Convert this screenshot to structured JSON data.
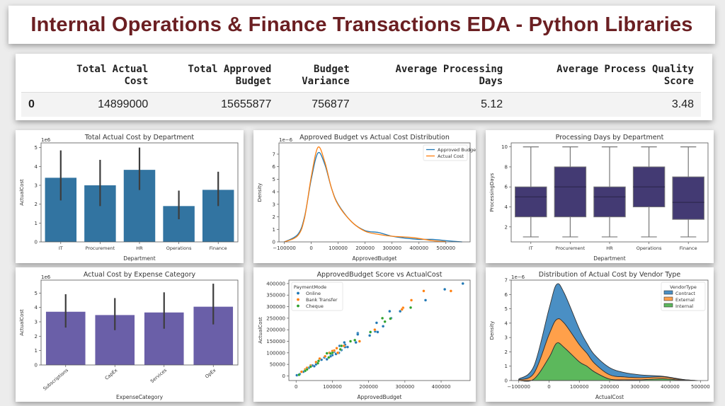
{
  "header": {
    "title": "Internal Operations & Finance Transactions EDA - Python Libraries"
  },
  "table": {
    "columns": [
      "",
      "Total Actual\nCost",
      "Total Approved\nBudget",
      "Budget\nVariance",
      "Average Processing\nDays",
      "Average Process Quality\nScore"
    ],
    "rows": [
      {
        "index": "0",
        "values": [
          "14899000",
          "15655877",
          "756877",
          "5.12",
          "3.48"
        ]
      }
    ]
  },
  "chart_data": [
    {
      "type": "bar",
      "title": "Total Actual Cost by Department",
      "xlabel": "Department",
      "ylabel": "ActualCost",
      "offset_label": "1e6",
      "categories": [
        "IT",
        "Procurement",
        "HR",
        "Operations",
        "Finance"
      ],
      "values": [
        3.4,
        3.0,
        3.82,
        1.9,
        2.76
      ],
      "ci": [
        [
          2.2,
          4.85
        ],
        [
          1.9,
          4.35
        ],
        [
          2.75,
          5.0
        ],
        [
          1.2,
          2.72
        ],
        [
          1.9,
          3.72
        ]
      ],
      "ylim": [
        0,
        5.25
      ],
      "yticks": [
        0,
        1,
        2,
        3,
        4,
        5
      ],
      "color": "#3274a1",
      "grid": false
    },
    {
      "type": "line",
      "title": "Approved Budget vs Actual Cost Distribution",
      "xlabel": "ApprovedBudget",
      "ylabel": "Density",
      "offset_label": "1e−6",
      "xlim": [
        -120000,
        590000
      ],
      "ylim": [
        0,
        7.9
      ],
      "xticks": [
        -100000,
        0,
        100000,
        200000,
        300000,
        400000,
        500000
      ],
      "xtick_labels": [
        "−100000",
        "0",
        "100000",
        "200000",
        "300000",
        "400000",
        "500000"
      ],
      "yticks": [
        0,
        1,
        2,
        3,
        4,
        5,
        6,
        7
      ],
      "legend": "top-right",
      "series": [
        {
          "name": "Approved Budget",
          "color": "#1f77b4",
          "x": [
            -100000,
            -50000,
            -25000,
            0,
            25000,
            50000,
            75000,
            100000,
            150000,
            200000,
            250000,
            300000,
            350000,
            400000,
            450000,
            500000,
            560000
          ],
          "y": [
            0,
            0.6,
            2.0,
            5.0,
            7.1,
            6.2,
            4.3,
            3.0,
            1.6,
            0.9,
            0.75,
            0.45,
            0.3,
            0.2,
            0.2,
            0.1,
            0
          ]
        },
        {
          "name": "Actual Cost",
          "color": "#ff7f0e",
          "x": [
            -100000,
            -50000,
            -25000,
            0,
            25000,
            50000,
            75000,
            100000,
            150000,
            200000,
            250000,
            300000,
            375000,
            450000,
            500000
          ],
          "y": [
            0,
            0.5,
            1.9,
            5.2,
            7.55,
            6.4,
            4.3,
            2.95,
            1.6,
            0.85,
            0.6,
            0.45,
            0.35,
            0.1,
            0.02
          ]
        }
      ],
      "grid": false
    },
    {
      "type": "box",
      "title": "Processing Days by Department",
      "xlabel": "Department",
      "ylabel": "ProcessingDays",
      "categories": [
        "IT",
        "Procurement",
        "HR",
        "Operations",
        "Finance"
      ],
      "boxes": [
        {
          "min": 1,
          "q1": 3,
          "median": 5,
          "q3": 6,
          "max": 10
        },
        {
          "min": 1,
          "q1": 3,
          "median": 6,
          "q3": 8,
          "max": 10
        },
        {
          "min": 1,
          "q1": 3,
          "median": 5,
          "q3": 6,
          "max": 10
        },
        {
          "min": 1,
          "q1": 4,
          "median": 6,
          "q3": 8,
          "max": 10
        },
        {
          "min": 1,
          "q1": 2.75,
          "median": 4.45,
          "q3": 7,
          "max": 10
        }
      ],
      "ylim": [
        0.5,
        10.4
      ],
      "yticks": [
        2,
        4,
        6,
        8,
        10
      ],
      "color": "#433a73",
      "grid": false
    },
    {
      "type": "bar",
      "title": "Actual Cost by Expense Category",
      "xlabel": "ExpenseCategory",
      "ylabel": "ActualCost",
      "offset_label": "1e6",
      "categories": [
        "Subscriptions",
        "CapEx",
        "Services",
        "OpEx"
      ],
      "values": [
        3.7,
        3.47,
        3.65,
        4.05
      ],
      "ci": [
        [
          2.6,
          4.92
        ],
        [
          2.42,
          4.65
        ],
        [
          2.52,
          5.05
        ],
        [
          2.82,
          5.65
        ]
      ],
      "ylim": [
        0,
        5.9
      ],
      "yticks": [
        0,
        1,
        2,
        3,
        4,
        5
      ],
      "rotate_xticks": true,
      "color": "#6a5fa8",
      "grid": false
    },
    {
      "type": "scatter",
      "title": "ApprovedBudget Score vs ActualCost",
      "xlabel": "ApprovedBudget",
      "ylabel": "ActualCost",
      "xlim": [
        -20000,
        480000
      ],
      "ylim": [
        -20000,
        415000
      ],
      "xticks": [
        0,
        100000,
        200000,
        300000,
        400000
      ],
      "yticks": [
        0,
        50000,
        100000,
        150000,
        200000,
        250000,
        300000,
        350000,
        400000
      ],
      "legend_title": "PaymentMode",
      "legend": "top-left",
      "series": [
        {
          "name": "Online",
          "color": "#1f77b4",
          "points": [
            [
              460000,
              400000
            ],
            [
              410000,
              375000
            ],
            [
              357000,
              328000
            ],
            [
              287000,
              280000
            ],
            [
              258000,
              280000
            ],
            [
              262000,
              250000
            ],
            [
              240000,
              215000
            ],
            [
              222000,
              230000
            ],
            [
              225000,
              190000
            ],
            [
              218000,
              193000
            ],
            [
              203000,
              175000
            ],
            [
              170000,
              185000
            ],
            [
              170000,
              180000
            ],
            [
              165000,
              145000
            ],
            [
              133000,
              145000
            ],
            [
              135000,
              135000
            ],
            [
              135000,
              125000
            ],
            [
              142000,
              125000
            ],
            [
              120000,
              130000
            ],
            [
              118000,
              100000
            ],
            [
              110000,
              95000
            ],
            [
              100000,
              90000
            ],
            [
              95000,
              85000
            ],
            [
              85000,
              72000
            ],
            [
              78000,
              80000
            ],
            [
              70000,
              70000
            ],
            [
              55000,
              50000
            ],
            [
              50000,
              42000
            ],
            [
              45000,
              45000
            ],
            [
              35000,
              35000
            ],
            [
              20000,
              18000
            ],
            [
              10000,
              8000
            ],
            [
              2000,
              3000
            ],
            [
              105000,
              105000
            ],
            [
              125000,
              112000
            ]
          ]
        },
        {
          "name": "Bank Transfer",
          "color": "#ff7f0e",
          "points": [
            [
              427000,
              368000
            ],
            [
              352000,
              368000
            ],
            [
              318000,
              328000
            ],
            [
              295000,
              295000
            ],
            [
              292000,
              288000
            ],
            [
              217000,
              200000
            ],
            [
              175000,
              150000
            ],
            [
              132000,
              130000
            ],
            [
              112000,
              120000
            ],
            [
              105000,
              110000
            ],
            [
              100000,
              108000
            ],
            [
              115000,
              100000
            ],
            [
              80000,
              85000
            ],
            [
              65000,
              75000
            ],
            [
              55000,
              60000
            ],
            [
              40000,
              45000
            ],
            [
              30000,
              35000
            ],
            [
              25000,
              28000
            ],
            [
              15000,
              18000
            ],
            [
              92000,
              100000
            ]
          ]
        },
        {
          "name": "Cheque",
          "color": "#2ca02c",
          "points": [
            [
              316000,
              296000
            ],
            [
              260000,
              248000
            ],
            [
              245000,
              235000
            ],
            [
              238000,
              250000
            ],
            [
              205000,
              190000
            ],
            [
              162000,
              155000
            ],
            [
              150000,
              150000
            ],
            [
              125000,
              130000
            ],
            [
              122000,
              115000
            ],
            [
              100000,
              100000
            ],
            [
              95000,
              97000
            ],
            [
              90000,
              80000
            ],
            [
              85000,
              98000
            ],
            [
              60000,
              55000
            ],
            [
              62000,
              65000
            ],
            [
              40000,
              40000
            ],
            [
              30000,
              28000
            ],
            [
              25000,
              22000
            ],
            [
              8000,
              5000
            ]
          ]
        }
      ],
      "grid": false
    },
    {
      "type": "area",
      "stacked": true,
      "title": "Distribution of Actual Cost by Vendor Type",
      "xlabel": "ActualCost",
      "ylabel": "Density",
      "offset_label": "1e−6",
      "xlim": [
        -125000,
        525000
      ],
      "ylim": [
        0,
        7
      ],
      "xticks": [
        -100000,
        0,
        100000,
        200000,
        300000,
        400000,
        500000
      ],
      "xtick_labels": [
        "−100000",
        "0",
        "100000",
        "200000",
        "300000",
        "400000",
        "500000"
      ],
      "yticks": [
        0,
        1,
        2,
        3,
        4,
        5,
        6,
        7
      ],
      "legend_title": "VendorType",
      "legend": "top-right",
      "x": [
        -100000,
        -50000,
        0,
        25000,
        50000,
        100000,
        125000,
        150000,
        200000,
        250000,
        300000,
        375000,
        420000,
        450000,
        490000
      ],
      "series": [
        {
          "name": "Contract",
          "color": "#4a8fc4",
          "values": [
            0.05,
            0.5,
            1.8,
            2.45,
            2.1,
            1.1,
            0.7,
            0.6,
            0.5,
            0.3,
            0.2,
            0.05,
            0.03,
            0.01,
            0
          ]
        },
        {
          "name": "External",
          "color": "#ffa04a",
          "values": [
            0.05,
            0.4,
            1.6,
            1.65,
            1.7,
            1.2,
            0.9,
            0.6,
            0.3,
            0.2,
            0.15,
            0.13,
            0.07,
            0.03,
            0
          ]
        },
        {
          "name": "Internal",
          "color": "#5cb85c",
          "values": [
            0,
            0.1,
            1.6,
            2.6,
            2.3,
            1.3,
            1.0,
            0.6,
            0.1,
            0.05,
            0.05,
            0.12,
            0.05,
            0.02,
            0
          ]
        }
      ],
      "grid": false
    }
  ]
}
